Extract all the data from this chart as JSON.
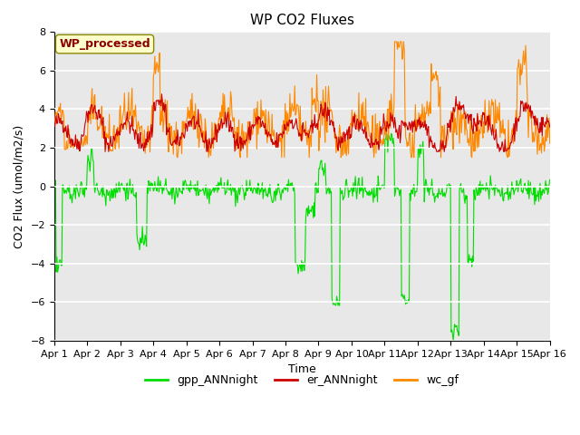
{
  "title": "WP CO2 Fluxes",
  "xlabel": "Time",
  "ylabel_display": "CO2 Flux (umol/m2/s)",
  "ylim": [
    -8,
    8
  ],
  "yticks": [
    -8,
    -6,
    -4,
    -2,
    0,
    2,
    4,
    6,
    8
  ],
  "n_days": 15,
  "n_per_day": 48,
  "color_gpp": "#00dd00",
  "color_er": "#cc0000",
  "color_wc": "#ff8800",
  "legend_label_gpp": "gpp_ANNnight",
  "legend_label_er": "er_ANNnight",
  "legend_label_wc": "wc_gf",
  "watermark_text": "WP_processed",
  "watermark_color": "#8B0000",
  "watermark_bg": "#ffffcc",
  "plot_bg": "#e8e8e8",
  "fig_bg": "#ffffff",
  "xtick_labels": [
    "Apr 1",
    "Apr 2",
    "Apr 3",
    "Apr 4",
    "Apr 5",
    "Apr 6",
    "Apr 7",
    "Apr 8",
    "Apr 9",
    "Apr 10",
    "Apr 11",
    "Apr 12",
    "Apr 13",
    "Apr 14",
    "Apr 15",
    "Apr 16"
  ],
  "title_fontsize": 11,
  "axis_label_fontsize": 9,
  "tick_fontsize": 8,
  "legend_fontsize": 9,
  "linewidth": 0.8
}
